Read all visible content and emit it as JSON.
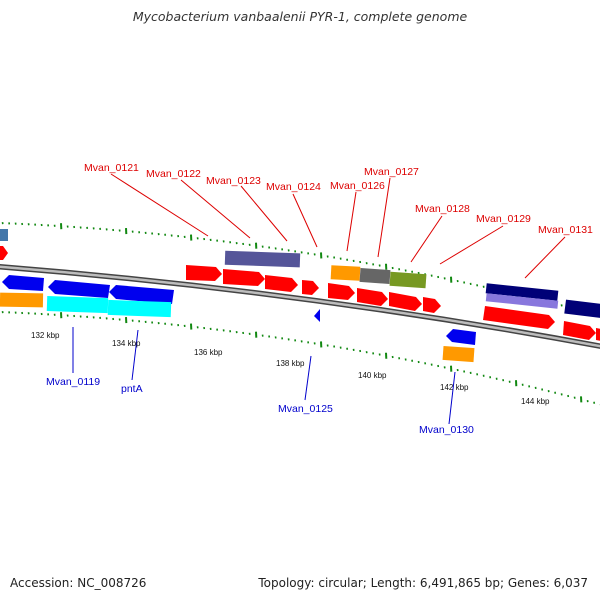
{
  "title": "Mycobacterium vanbaalenii PYR-1, complete genome",
  "accession": "Accession: NC_008726",
  "summary": "Topology: circular; Length: 6,491,865 bp; Genes: 6,037",
  "scale_labels": [
    "132 kbp",
    "134 kbp",
    "136 kbp",
    "138 kbp",
    "140 kbp",
    "142 kbp",
    "144 kbp"
  ],
  "colors": {
    "red": "#ff0000",
    "blue": "#0000ee",
    "cyan": "#00ffff",
    "orange": "#ff9900",
    "slate": "#555599",
    "gray": "#666666",
    "olive": "#779922",
    "navy": "#000077",
    "backbone": "#888888",
    "tick": "#118811",
    "steelblue": "#4477aa",
    "forward_label": "#dd0000",
    "reverse_label": "#0000cc"
  },
  "forward_labels": [
    "Mvan_0121",
    "Mvan_0122",
    "Mvan_0123",
    "Mvan_0124",
    "Mvan_0126",
    "Mvan_0127",
    "Mvan_0128",
    "Mvan_0129",
    "Mvan_0131"
  ],
  "reverse_labels": [
    "Mvan_0119",
    "pntA",
    "Mvan_0125",
    "Mvan_0130"
  ]
}
